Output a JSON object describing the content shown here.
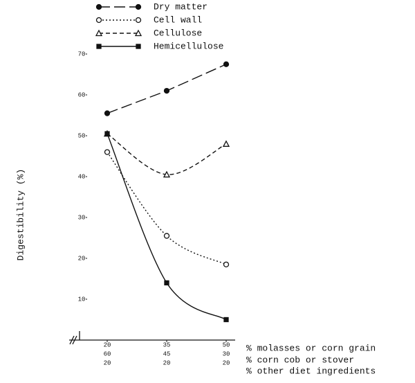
{
  "chart_data": {
    "type": "line",
    "y_label": "Digestibility (%)",
    "ylim": [
      0,
      70
    ],
    "yticks": [
      10,
      20,
      30,
      40,
      50,
      60,
      70
    ],
    "x_rows": [
      {
        "label": "% molasses or corn grain",
        "values": [
          20,
          35,
          50
        ]
      },
      {
        "label": "% corn cob or stover",
        "values": [
          60,
          45,
          30
        ]
      },
      {
        "label": "% other diet ingredients",
        "values": [
          20,
          20,
          20
        ]
      }
    ],
    "legend": "top-left",
    "series": [
      {
        "name": "Dry matter",
        "color": "#111111",
        "dash": "16 6",
        "marker": "circle-filled",
        "smooth": false,
        "values": [
          55.5,
          61,
          67.5
        ]
      },
      {
        "name": "Cell wall",
        "color": "#111111",
        "dash": "2 3",
        "marker": "circle-open",
        "smooth": true,
        "values": [
          46,
          25.5,
          18.5
        ]
      },
      {
        "name": "Cellulose",
        "color": "#111111",
        "dash": "6 4",
        "marker": "triangle-open",
        "smooth": true,
        "values": [
          50.5,
          40.5,
          48
        ]
      },
      {
        "name": "Hemicellulose",
        "color": "#111111",
        "dash": "none",
        "marker": "square-filled",
        "smooth": true,
        "values": [
          50.5,
          14,
          5
        ]
      }
    ]
  }
}
